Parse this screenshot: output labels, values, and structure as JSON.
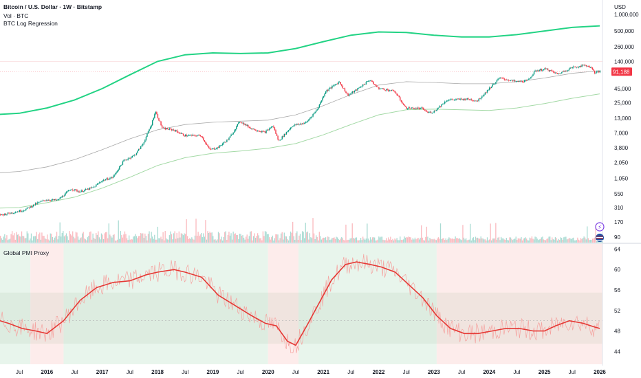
{
  "header": {
    "title": "Bitcoin / U.S. Dollar · 1W · Bitstamp",
    "volume_label": "Vol · BTC",
    "indicator_label": "BTC Log Regression",
    "currency": "USD"
  },
  "pmi_pane": {
    "label": "Global PMI Proxy"
  },
  "price_badge": {
    "value": "91,188",
    "color": "#f23645"
  },
  "colors": {
    "up": "#089981",
    "down": "#f23645",
    "upper_band": "#22d384",
    "mid_band": "#a8a8a8",
    "lower_band": "#a3d9a5",
    "pmi_line": "#e53935",
    "pmi_raw": "#f5a3a0",
    "green_zone": "#e8f5ec",
    "red_zone": "#fdeceb"
  },
  "icons": [
    "lightning-icon",
    "us-flag-icon"
  ],
  "chart_data": [
    {
      "type": "candlestick",
      "title": "Bitcoin / U.S. Dollar · 1W · Bitstamp",
      "y_scale": "log",
      "y_ticks": [
        "1,000,000",
        "500,000",
        "260,000",
        "140,000",
        "91,188",
        "45,000",
        "25,000",
        "13,000",
        "7,000",
        "3,800",
        "2,050",
        "1,050",
        "550",
        "310",
        "170",
        "90"
      ],
      "x_ticks": [
        "Jul",
        "2016",
        "Jul",
        "2017",
        "Jul",
        "2018",
        "Jul",
        "2019",
        "Jul",
        "2020",
        "Jul",
        "2021",
        "Jul",
        "2022",
        "Jul",
        "2023",
        "Jul",
        "2024",
        "Jul",
        "2025",
        "Jul",
        "2026"
      ],
      "x_tick_years": [
        2015.5,
        2016,
        2016.5,
        2017,
        2017.5,
        2018,
        2018.5,
        2019,
        2019.5,
        2020,
        2020.5,
        2021,
        2021.5,
        2022,
        2022.5,
        2023,
        2023.5,
        2024,
        2024.5,
        2025,
        2025.5,
        2026
      ],
      "price_path": [
        [
          2015.0,
          240
        ],
        [
          2015.2,
          230
        ],
        [
          2015.45,
          260
        ],
        [
          2015.6,
          280
        ],
        [
          2015.85,
          380
        ],
        [
          2016.0,
          430
        ],
        [
          2016.2,
          420
        ],
        [
          2016.45,
          680
        ],
        [
          2016.6,
          600
        ],
        [
          2016.85,
          720
        ],
        [
          2017.0,
          950
        ],
        [
          2017.2,
          1100
        ],
        [
          2017.4,
          2200
        ],
        [
          2017.6,
          2800
        ],
        [
          2017.75,
          4500
        ],
        [
          2017.9,
          10000
        ],
        [
          2017.97,
          17500
        ],
        [
          2018.1,
          8500
        ],
        [
          2018.3,
          8000
        ],
        [
          2018.5,
          6300
        ],
        [
          2018.8,
          6300
        ],
        [
          2018.95,
          3500
        ],
        [
          2019.1,
          3800
        ],
        [
          2019.3,
          5500
        ],
        [
          2019.5,
          11500
        ],
        [
          2019.7,
          8500
        ],
        [
          2019.95,
          7200
        ],
        [
          2020.1,
          9500
        ],
        [
          2020.2,
          5000
        ],
        [
          2020.45,
          9500
        ],
        [
          2020.7,
          10800
        ],
        [
          2020.9,
          19000
        ],
        [
          2021.05,
          40000
        ],
        [
          2021.3,
          60000
        ],
        [
          2021.45,
          34000
        ],
        [
          2021.6,
          42000
        ],
        [
          2021.85,
          65000
        ],
        [
          2022.0,
          46000
        ],
        [
          2022.3,
          40000
        ],
        [
          2022.5,
          20000
        ],
        [
          2022.8,
          19500
        ],
        [
          2022.9,
          16500
        ],
        [
          2023.0,
          17000
        ],
        [
          2023.25,
          28000
        ],
        [
          2023.6,
          29000
        ],
        [
          2023.8,
          27000
        ],
        [
          2024.0,
          44000
        ],
        [
          2024.2,
          70000
        ],
        [
          2024.5,
          60000
        ],
        [
          2024.7,
          62000
        ],
        [
          2024.85,
          95000
        ],
        [
          2025.05,
          102000
        ],
        [
          2025.25,
          82000
        ],
        [
          2025.5,
          108000
        ],
        [
          2025.75,
          120000
        ],
        [
          2025.85,
          110000
        ],
        [
          2025.92,
          88000
        ],
        [
          2026.0,
          91188
        ]
      ],
      "log_regression": {
        "upper": [
          [
            2015.0,
            15000
          ],
          [
            2015.5,
            16000
          ],
          [
            2016.0,
            20000
          ],
          [
            2016.5,
            28000
          ],
          [
            2017.0,
            45000
          ],
          [
            2017.5,
            80000
          ],
          [
            2018.0,
            140000
          ],
          [
            2018.5,
            185000
          ],
          [
            2019.0,
            200000
          ],
          [
            2019.5,
            195000
          ],
          [
            2020.0,
            200000
          ],
          [
            2020.5,
            240000
          ],
          [
            2021.0,
            320000
          ],
          [
            2021.5,
            420000
          ],
          [
            2022.0,
            480000
          ],
          [
            2022.5,
            470000
          ],
          [
            2023.0,
            420000
          ],
          [
            2023.5,
            390000
          ],
          [
            2024.0,
            390000
          ],
          [
            2024.5,
            430000
          ],
          [
            2025.0,
            500000
          ],
          [
            2025.5,
            580000
          ],
          [
            2026.0,
            620000
          ]
        ],
        "middle": [
          [
            2015.0,
            1300
          ],
          [
            2015.5,
            1400
          ],
          [
            2016.0,
            1700
          ],
          [
            2016.5,
            2300
          ],
          [
            2017.0,
            3500
          ],
          [
            2017.5,
            5500
          ],
          [
            2018.0,
            8000
          ],
          [
            2018.5,
            10000
          ],
          [
            2019.0,
            11000
          ],
          [
            2019.5,
            11500
          ],
          [
            2020.0,
            12000
          ],
          [
            2020.5,
            15000
          ],
          [
            2021.0,
            22000
          ],
          [
            2021.5,
            35000
          ],
          [
            2022.0,
            52000
          ],
          [
            2022.5,
            60000
          ],
          [
            2023.0,
            58000
          ],
          [
            2023.5,
            55000
          ],
          [
            2024.0,
            55000
          ],
          [
            2024.5,
            60000
          ],
          [
            2025.0,
            70000
          ],
          [
            2025.5,
            85000
          ],
          [
            2026.0,
            95000
          ]
        ],
        "lower": [
          [
            2015.0,
            300
          ],
          [
            2015.5,
            310
          ],
          [
            2016.0,
            380
          ],
          [
            2016.5,
            480
          ],
          [
            2017.0,
            700
          ],
          [
            2017.5,
            1100
          ],
          [
            2018.0,
            1800
          ],
          [
            2018.5,
            2500
          ],
          [
            2019.0,
            3000
          ],
          [
            2019.5,
            3300
          ],
          [
            2020.0,
            3700
          ],
          [
            2020.5,
            4500
          ],
          [
            2021.0,
            6500
          ],
          [
            2021.5,
            10000
          ],
          [
            2022.0,
            15000
          ],
          [
            2022.5,
            18500
          ],
          [
            2023.0,
            19000
          ],
          [
            2023.5,
            18500
          ],
          [
            2024.0,
            18000
          ],
          [
            2024.5,
            20000
          ],
          [
            2025.0,
            24000
          ],
          [
            2025.5,
            30000
          ],
          [
            2026.0,
            36000
          ]
        ]
      },
      "last_price": 91188
    },
    {
      "type": "line",
      "title": "Global PMI Proxy",
      "y_ticks": [
        64,
        60,
        56,
        52,
        48,
        44
      ],
      "ylim": [
        41.5,
        65
      ],
      "band": [
        45.5,
        55.5
      ],
      "smoothed": [
        [
          2015.0,
          50.5
        ],
        [
          2015.3,
          49.5
        ],
        [
          2015.55,
          48.5
        ],
        [
          2015.8,
          48.0
        ],
        [
          2016.0,
          47.5
        ],
        [
          2016.3,
          50.0
        ],
        [
          2016.6,
          54.0
        ],
        [
          2016.9,
          56.5
        ],
        [
          2017.2,
          57.5
        ],
        [
          2017.5,
          57.8
        ],
        [
          2017.8,
          59.0
        ],
        [
          2018.0,
          59.5
        ],
        [
          2018.3,
          60.0
        ],
        [
          2018.5,
          59.5
        ],
        [
          2018.8,
          58.5
        ],
        [
          2019.1,
          55.0
        ],
        [
          2019.4,
          53.0
        ],
        [
          2019.7,
          51.0
        ],
        [
          2019.95,
          49.5
        ],
        [
          2020.15,
          49.0
        ],
        [
          2020.35,
          46.0
        ],
        [
          2020.5,
          45.2
        ],
        [
          2020.7,
          49.0
        ],
        [
          2020.9,
          53.0
        ],
        [
          2021.15,
          58.0
        ],
        [
          2021.4,
          61.0
        ],
        [
          2021.6,
          61.5
        ],
        [
          2021.85,
          61.0
        ],
        [
          2022.05,
          60.5
        ],
        [
          2022.3,
          59.5
        ],
        [
          2022.55,
          57.0
        ],
        [
          2022.8,
          54.5
        ],
        [
          2023.05,
          51.0
        ],
        [
          2023.3,
          48.5
        ],
        [
          2023.55,
          47.5
        ],
        [
          2023.8,
          47.5
        ],
        [
          2024.05,
          48.0
        ],
        [
          2024.3,
          48.5
        ],
        [
          2024.55,
          48.5
        ],
        [
          2024.8,
          48.0
        ],
        [
          2025.0,
          48.0
        ],
        [
          2025.2,
          49.0
        ],
        [
          2025.45,
          50.0
        ],
        [
          2025.7,
          49.5
        ],
        [
          2025.9,
          48.8
        ],
        [
          2026.0,
          48.5
        ]
      ]
    }
  ]
}
